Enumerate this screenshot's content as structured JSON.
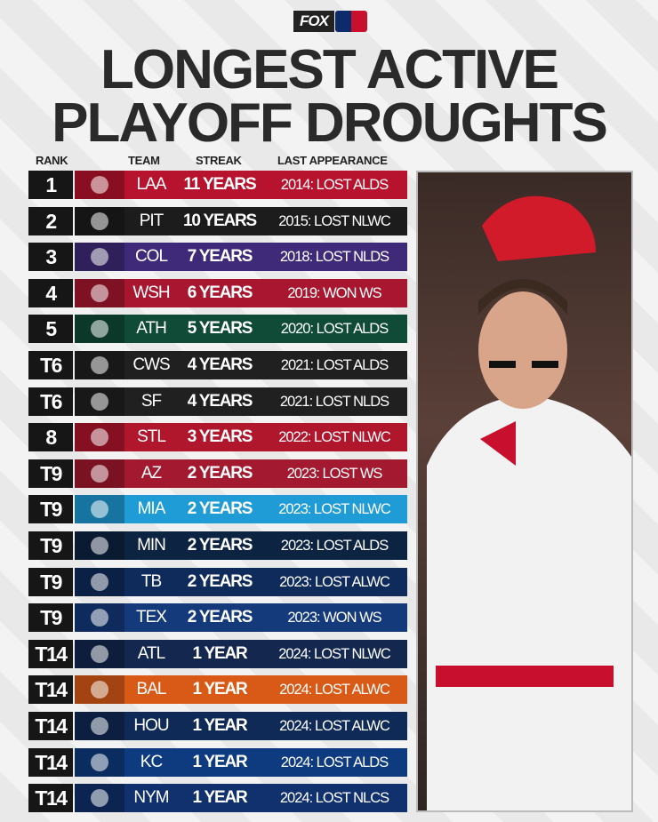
{
  "header": {
    "brand": "FOX",
    "title_lines": [
      "LONGEST ACTIVE",
      "PLAYOFF DROUGHTS"
    ]
  },
  "table": {
    "columns": [
      "RANK",
      "TEAM",
      "STREAK",
      "LAST APPEARANCE"
    ],
    "rows": [
      {
        "rank": "1",
        "team": "LAA",
        "streak": "11 YEARS",
        "last": "2014: LOST ALDS",
        "color": "#b8132e"
      },
      {
        "rank": "2",
        "team": "PIT",
        "streak": "10 YEARS",
        "last": "2015: LOST NLWC",
        "color": "#1c1c1c"
      },
      {
        "rank": "3",
        "team": "COL",
        "streak": "7 YEARS",
        "last": "2018: LOST NLDS",
        "color": "#3f2a7a"
      },
      {
        "rank": "4",
        "team": "WSH",
        "streak": "6 YEARS",
        "last": "2019: WON WS",
        "color": "#a8172f"
      },
      {
        "rank": "5",
        "team": "ATH",
        "streak": "5 YEARS",
        "last": "2020: LOST ALDS",
        "color": "#0f4b36"
      },
      {
        "rank": "T6",
        "team": "CWS",
        "streak": "4 YEARS",
        "last": "2021: LOST ALDS",
        "color": "#202020"
      },
      {
        "rank": "T6",
        "team": "SF",
        "streak": "4 YEARS",
        "last": "2021: LOST NLDS",
        "color": "#202020"
      },
      {
        "rank": "8",
        "team": "STL",
        "streak": "3 YEARS",
        "last": "2022: LOST NLWC",
        "color": "#b0162c"
      },
      {
        "rank": "T9",
        "team": "AZ",
        "streak": "2 YEARS",
        "last": "2023: LOST WS",
        "color": "#a3192f"
      },
      {
        "rank": "T9",
        "team": "MIA",
        "streak": "2 YEARS",
        "last": "2023: LOST NLWC",
        "color": "#1f9bd6"
      },
      {
        "rank": "T9",
        "team": "MIN",
        "streak": "2 YEARS",
        "last": "2023: LOST ALDS",
        "color": "#0d2342"
      },
      {
        "rank": "T9",
        "team": "TB",
        "streak": "2 YEARS",
        "last": "2023: LOST ALWC",
        "color": "#0f2b5c"
      },
      {
        "rank": "T9",
        "team": "TEX",
        "streak": "2 YEARS",
        "last": "2023: WON WS",
        "color": "#143a7c"
      },
      {
        "rank": "T14",
        "team": "ATL",
        "streak": "1 YEAR",
        "last": "2024: LOST NLWC",
        "color": "#13274f"
      },
      {
        "rank": "T14",
        "team": "BAL",
        "streak": "1 YEAR",
        "last": "2024: LOST ALWC",
        "color": "#d95a17"
      },
      {
        "rank": "T14",
        "team": "HOU",
        "streak": "1 YEAR",
        "last": "2024: LOST ALWC",
        "color": "#102a57"
      },
      {
        "rank": "T14",
        "team": "KC",
        "streak": "1 YEAR",
        "last": "2024: LOST ALDS",
        "color": "#0e3b7f"
      },
      {
        "rank": "T14",
        "team": "NYM",
        "streak": "1 YEAR",
        "last": "2024: LOST NLCS",
        "color": "#10306e"
      }
    ]
  }
}
